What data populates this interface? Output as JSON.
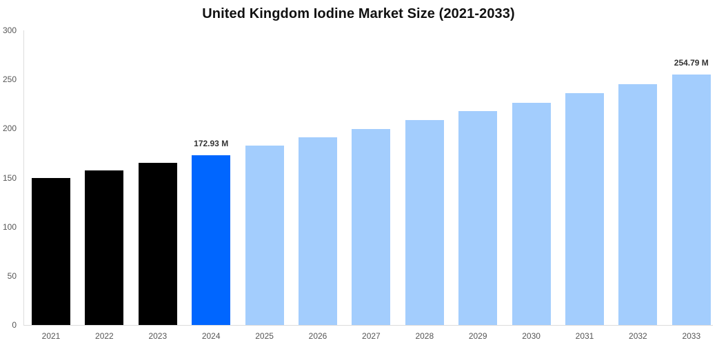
{
  "chart_data": {
    "type": "bar",
    "title": "United Kingdom Iodine Market Size (2021-2033)",
    "xlabel": "",
    "ylabel": "",
    "ylim": [
      0,
      300
    ],
    "yticks": [
      0,
      50,
      100,
      150,
      200,
      250,
      300
    ],
    "grid": false,
    "legend": null,
    "categories": [
      "2021",
      "2022",
      "2023",
      "2024",
      "2025",
      "2026",
      "2027",
      "2028",
      "2029",
      "2030",
      "2031",
      "2032",
      "2033"
    ],
    "values": [
      149.7,
      157.4,
      165.1,
      172.93,
      182.4,
      190.8,
      199.6,
      208.7,
      217.5,
      226.3,
      235.8,
      245.3,
      254.79
    ],
    "bar_colors": [
      "#000000",
      "#000000",
      "#000000",
      "#0066ff",
      "#a3cdfd",
      "#a3cdfd",
      "#a3cdfd",
      "#a3cdfd",
      "#a3cdfd",
      "#a3cdfd",
      "#a3cdfd",
      "#a3cdfd",
      "#a3cdfd"
    ],
    "annotations": [
      {
        "category": "2024",
        "text": "172.93 M"
      },
      {
        "category": "2033",
        "text": "254.79 M"
      }
    ]
  },
  "colors": {
    "historical": "#000000",
    "base_year": "#0066ff",
    "forecast": "#a3cdfd",
    "axis": "#dcdcdc",
    "tick_text": "#555555"
  }
}
